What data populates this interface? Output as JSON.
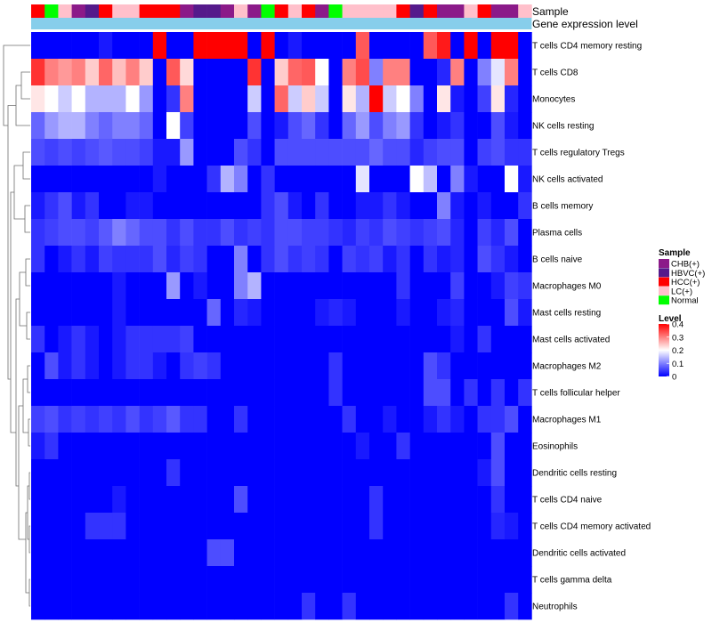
{
  "chart_data": {
    "type": "heatmap",
    "title": "",
    "annotation_tracks": [
      {
        "name": "Sample",
        "kind": "categorical"
      },
      {
        "name": "Gene expression level",
        "color": "#87ceeb"
      }
    ],
    "sample_annotation": [
      "HCC(+)",
      "Normal",
      "LC(+)",
      "CHB(+)",
      "HBVC(+)",
      "HCC(+)",
      "LC(+)",
      "LC(+)",
      "HCC(+)",
      "HCC(+)",
      "HCC(+)",
      "CHB(+)",
      "HBVC(+)",
      "HBVC(+)",
      "CHB(+)",
      "LC(+)",
      "CHB(+)",
      "Normal",
      "HCC(+)",
      "LC(+)",
      "HCC(+)",
      "CHB(+)",
      "Normal",
      "LC(+)",
      "LC(+)",
      "LC(+)",
      "LC(+)",
      "HCC(+)",
      "HBVC(+)",
      "HCC(+)",
      "CHB(+)",
      "CHB(+)",
      "LC(+)",
      "HCC(+)",
      "CHB(+)",
      "CHB(+)",
      "LC(+)"
    ],
    "rows": [
      "T cells CD4 memory resting",
      "T cells CD8",
      "Monocytes",
      "NK cells resting",
      "T cells regulatory  Tregs",
      "NK cells activated",
      "B cells memory",
      "Plasma cells",
      "B cells naive",
      "Macrophages M0",
      "Mast cells resting",
      "Mast cells activated",
      "Macrophages M2",
      "T cells follicular helper",
      "Macrophages M1",
      "Eosinophils",
      "Dendritic cells resting",
      "T cells CD4 naive",
      "T cells CD4 memory activated",
      "Dendritic cells activated",
      "T cells gamma delta",
      "Neutrophils"
    ],
    "values": [
      [
        0,
        0,
        0,
        0,
        0,
        0.02,
        0,
        0,
        0,
        0.4,
        0,
        0,
        0.4,
        0.4,
        0.4,
        0.4,
        0,
        0.4,
        0,
        0.02,
        0,
        0,
        0,
        0,
        0.33,
        0,
        0,
        0,
        0,
        0.33,
        0.38,
        0,
        0.4,
        0,
        0.4,
        0.4,
        0
      ],
      [
        0.36,
        0.3,
        0.28,
        0.3,
        0.24,
        0.32,
        0.25,
        0.3,
        0.24,
        0,
        0.33,
        0.23,
        0,
        0,
        0,
        0,
        0.36,
        0,
        0.24,
        0.32,
        0.33,
        0.2,
        0,
        0.3,
        0.34,
        0.1,
        0.3,
        0.3,
        0,
        0,
        0.03,
        0.3,
        0,
        0.1,
        0.18,
        0.3,
        0
      ],
      [
        0.22,
        0.2,
        0.16,
        0.2,
        0.14,
        0.14,
        0.14,
        0.2,
        0.12,
        0,
        0.04,
        0.3,
        0,
        0,
        0,
        0,
        0.16,
        0,
        0.32,
        0.16,
        0.24,
        0.16,
        0,
        0.22,
        0.14,
        0.4,
        0.16,
        0.2,
        0.1,
        0,
        0.22,
        0.02,
        0,
        0.05,
        0.22,
        0.03,
        0
      ],
      [
        0.08,
        0.12,
        0.14,
        0.14,
        0.1,
        0.08,
        0.1,
        0.1,
        0.08,
        0,
        0.2,
        0.05,
        0,
        0,
        0,
        0,
        0.06,
        0,
        0.02,
        0.06,
        0.08,
        0.04,
        0,
        0.08,
        0.12,
        0.06,
        0.1,
        0.12,
        0.04,
        0,
        0.02,
        0.04,
        0,
        0,
        0.06,
        0.02,
        0
      ],
      [
        0.06,
        0.05,
        0.06,
        0.05,
        0.06,
        0.07,
        0.06,
        0.06,
        0.05,
        0.02,
        0.02,
        0.12,
        0,
        0,
        0,
        0.06,
        0.04,
        0,
        0.06,
        0.06,
        0.06,
        0.06,
        0.06,
        0.06,
        0.06,
        0.08,
        0.06,
        0.06,
        0.03,
        0.05,
        0.06,
        0.06,
        0,
        0.05,
        0.06,
        0.04,
        0.04
      ],
      [
        0,
        0,
        0,
        0,
        0,
        0,
        0,
        0,
        0,
        0.02,
        0,
        0,
        0,
        0.04,
        0.14,
        0.1,
        0,
        0.04,
        0,
        0,
        0,
        0,
        0,
        0,
        0.18,
        0,
        0,
        0,
        0.2,
        0.15,
        0,
        0.1,
        0.02,
        0,
        0,
        0.2,
        0.02
      ],
      [
        0.02,
        0.04,
        0.06,
        0.02,
        0.04,
        0,
        0,
        0.02,
        0.02,
        0,
        0,
        0,
        0,
        0,
        0,
        0,
        0,
        0.04,
        0.06,
        0.02,
        0,
        0.04,
        0,
        0,
        0.02,
        0.02,
        0.04,
        0.02,
        0,
        0,
        0.1,
        0.02,
        0,
        0.02,
        0,
        0,
        0.04
      ],
      [
        0.04,
        0.05,
        0.06,
        0.06,
        0.05,
        0.07,
        0.1,
        0.08,
        0.06,
        0.06,
        0.04,
        0.06,
        0.04,
        0.04,
        0.06,
        0.04,
        0.05,
        0.04,
        0.06,
        0.06,
        0.05,
        0.05,
        0.04,
        0.03,
        0.05,
        0.04,
        0.06,
        0.05,
        0.04,
        0.05,
        0.06,
        0.03,
        0,
        0.05,
        0.03,
        0.06,
        0
      ],
      [
        0.04,
        0,
        0.02,
        0.04,
        0.02,
        0.05,
        0.04,
        0.04,
        0.04,
        0.06,
        0.03,
        0.05,
        0.04,
        0,
        0,
        0.1,
        0,
        0.04,
        0.06,
        0.04,
        0.05,
        0.04,
        0,
        0.05,
        0.04,
        0.05,
        0.02,
        0.04,
        0,
        0.04,
        0.02,
        0.03,
        0,
        0.06,
        0.04,
        0.02,
        0
      ],
      [
        0,
        0,
        0,
        0,
        0,
        0,
        0.02,
        0,
        0,
        0,
        0.12,
        0,
        0.02,
        0,
        0,
        0.1,
        0.14,
        0,
        0,
        0,
        0,
        0,
        0,
        0,
        0,
        0,
        0,
        0.04,
        0,
        0,
        0,
        0.05,
        0,
        0,
        0.02,
        0.05,
        0.04
      ],
      [
        0,
        0,
        0,
        0,
        0,
        0,
        0.02,
        0,
        0,
        0,
        0,
        0,
        0,
        0.08,
        0,
        0.03,
        0.02,
        0,
        0,
        0,
        0,
        0.02,
        0.03,
        0.02,
        0,
        0,
        0,
        0.02,
        0,
        0,
        0.02,
        0.03,
        0,
        0,
        0,
        0.06,
        0.02
      ],
      [
        0.04,
        0,
        0.02,
        0.04,
        0.02,
        0,
        0.02,
        0.04,
        0.04,
        0.04,
        0.04,
        0.05,
        0,
        0,
        0,
        0,
        0,
        0,
        0,
        0,
        0,
        0,
        0,
        0,
        0,
        0,
        0,
        0,
        0,
        0,
        0,
        0.02,
        0,
        0.04,
        0,
        0,
        0
      ],
      [
        0,
        0.06,
        0.02,
        0.04,
        0.02,
        0,
        0.02,
        0.04,
        0.04,
        0.02,
        0,
        0.04,
        0.05,
        0.04,
        0,
        0,
        0,
        0,
        0,
        0,
        0,
        0,
        0.04,
        0,
        0,
        0,
        0,
        0,
        0,
        0.06,
        0.04,
        0,
        0,
        0,
        0,
        0,
        0
      ],
      [
        0,
        0,
        0,
        0,
        0,
        0,
        0,
        0,
        0,
        0,
        0,
        0,
        0,
        0,
        0,
        0,
        0,
        0,
        0,
        0,
        0,
        0,
        0.04,
        0,
        0,
        0,
        0,
        0,
        0,
        0.06,
        0.06,
        0,
        0.04,
        0,
        0.04,
        0,
        0.04
      ],
      [
        0.05,
        0.06,
        0.04,
        0.05,
        0.04,
        0.05,
        0.04,
        0.06,
        0.04,
        0.05,
        0.07,
        0.04,
        0.04,
        0,
        0,
        0.04,
        0,
        0,
        0,
        0,
        0,
        0,
        0,
        0.04,
        0,
        0,
        0.02,
        0,
        0,
        0.02,
        0.04,
        0.02,
        0,
        0.04,
        0.04,
        0.06,
        0
      ],
      [
        0.02,
        0.04,
        0,
        0,
        0,
        0,
        0,
        0,
        0,
        0,
        0,
        0,
        0,
        0,
        0,
        0,
        0,
        0,
        0,
        0,
        0,
        0,
        0,
        0,
        0.02,
        0,
        0,
        0.04,
        0,
        0,
        0,
        0,
        0,
        0,
        0.06,
        0,
        0
      ],
      [
        0,
        0,
        0,
        0,
        0,
        0,
        0,
        0,
        0,
        0,
        0.04,
        0,
        0,
        0,
        0,
        0,
        0,
        0,
        0,
        0,
        0,
        0,
        0,
        0,
        0,
        0,
        0,
        0,
        0,
        0,
        0,
        0,
        0,
        0.02,
        0.06,
        0,
        0
      ],
      [
        0,
        0,
        0,
        0,
        0,
        0,
        0.02,
        0,
        0,
        0,
        0,
        0,
        0,
        0,
        0,
        0.06,
        0,
        0,
        0,
        0,
        0,
        0,
        0,
        0,
        0,
        0.04,
        0,
        0,
        0,
        0,
        0,
        0,
        0,
        0,
        0.04,
        0,
        0
      ],
      [
        0,
        0,
        0,
        0,
        0.04,
        0.04,
        0.04,
        0,
        0,
        0,
        0,
        0,
        0,
        0,
        0,
        0,
        0,
        0,
        0,
        0,
        0,
        0,
        0,
        0,
        0,
        0.04,
        0,
        0,
        0,
        0,
        0,
        0,
        0,
        0,
        0.03,
        0.02,
        0
      ],
      [
        0,
        0,
        0,
        0,
        0,
        0,
        0,
        0,
        0,
        0,
        0,
        0,
        0,
        0.06,
        0.06,
        0,
        0,
        0,
        0,
        0,
        0,
        0,
        0,
        0,
        0,
        0,
        0,
        0,
        0,
        0,
        0,
        0,
        0,
        0,
        0,
        0,
        0
      ],
      [
        0,
        0,
        0,
        0,
        0,
        0,
        0,
        0,
        0,
        0,
        0,
        0,
        0,
        0,
        0,
        0,
        0,
        0,
        0,
        0,
        0,
        0,
        0,
        0,
        0,
        0,
        0,
        0,
        0,
        0,
        0,
        0,
        0,
        0,
        0,
        0,
        0
      ],
      [
        0,
        0,
        0,
        0,
        0,
        0,
        0,
        0,
        0,
        0,
        0,
        0,
        0,
        0,
        0,
        0,
        0,
        0,
        0,
        0,
        0.04,
        0,
        0,
        0.04,
        0,
        0,
        0,
        0,
        0,
        0,
        0,
        0,
        0,
        0,
        0,
        0.04,
        0
      ]
    ],
    "color_scale": {
      "min": 0,
      "max": 0.4,
      "low": "#0000ff",
      "mid": "#ffffff",
      "high": "#ff0000",
      "mid_value": 0.2
    },
    "legend": {
      "position": "right",
      "sample": {
        "title": "Sample",
        "items": [
          {
            "label": "CHB(+)",
            "color": "#8b1a89"
          },
          {
            "label": "HBVC(+)",
            "color": "#551a8b"
          },
          {
            "label": "HCC(+)",
            "color": "#ff0000"
          },
          {
            "label": "LC(+)",
            "color": "#ffc0cb"
          },
          {
            "label": "Normal",
            "color": "#00ff00"
          }
        ]
      },
      "level": {
        "title": "Level",
        "ticks": [
          "0.4",
          "0.3",
          "0.2",
          "0.1",
          "0"
        ],
        "tick_values": [
          0.4,
          0.3,
          0.2,
          0.1,
          0
        ]
      }
    },
    "row_dendrogram": true
  }
}
